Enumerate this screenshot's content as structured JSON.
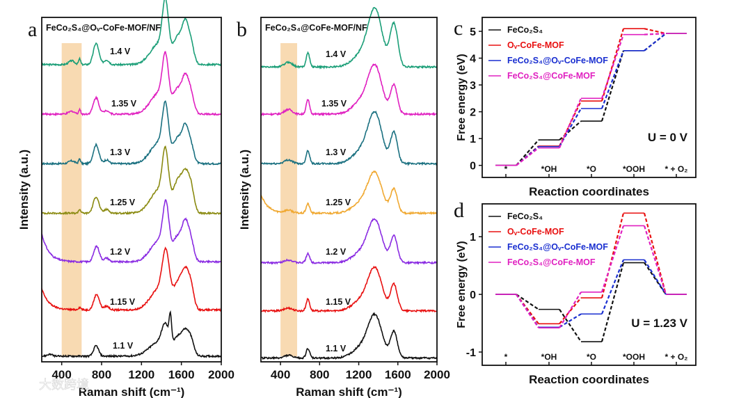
{
  "watermark": "大数跨境",
  "chart_data": [
    {
      "panel": "a",
      "type": "line",
      "title": "FeCo₂S₄@Oᵥ-CoFe-MOF/NF",
      "xlabel": "Raman shift (cm⁻¹)",
      "ylabel": "Intensity (a.u.)",
      "xlim": [
        200,
        2000
      ],
      "xticks": [
        "400",
        "800",
        "1200",
        "1600",
        "2000"
      ],
      "xtick_values": [
        400,
        800,
        1200,
        1600,
        2000
      ],
      "highlight_band": [
        400,
        600
      ],
      "ylim": [
        0,
        7.3
      ],
      "series": [
        {
          "name": "1.4 V",
          "color": "#1a9e77",
          "offset": 6.3,
          "tail": 0,
          "peaks": [
            [
              500,
              0.08,
              30
            ],
            [
              580,
              0.12,
              10
            ],
            [
              745,
              0.45,
              28
            ],
            [
              850,
              0.1,
              25
            ],
            [
              1440,
              1.05,
              30
            ],
            [
              1380,
              0.45,
              90
            ],
            [
              1560,
              0.5,
              40
            ],
            [
              1640,
              0.85,
              35
            ],
            [
              1700,
              0.35,
              30
            ]
          ]
        },
        {
          "name": "1.35 V",
          "color": "#e020c0",
          "offset": 5.25,
          "tail": 0,
          "peaks": [
            [
              500,
              0.06,
              30
            ],
            [
              580,
              0.1,
              10
            ],
            [
              745,
              0.35,
              28
            ],
            [
              850,
              0.08,
              25
            ],
            [
              1440,
              0.95,
              30
            ],
            [
              1380,
              0.45,
              90
            ],
            [
              1560,
              0.45,
              40
            ],
            [
              1640,
              0.75,
              35
            ],
            [
              1700,
              0.35,
              30
            ]
          ]
        },
        {
          "name": "1.3 V",
          "color": "#1a7080",
          "offset": 4.2,
          "tail": 0,
          "peaks": [
            [
              500,
              0.06,
              30
            ],
            [
              580,
              0.1,
              10
            ],
            [
              745,
              0.4,
              28
            ],
            [
              850,
              0.08,
              25
            ],
            [
              1440,
              0.95,
              30
            ],
            [
              1380,
              0.45,
              90
            ],
            [
              1560,
              0.45,
              40
            ],
            [
              1640,
              0.75,
              35
            ],
            [
              1700,
              0.3,
              30
            ]
          ]
        },
        {
          "name": "1.25 V",
          "color": "#8a8a10",
          "offset": 3.15,
          "tail": 0,
          "peaks": [
            [
              580,
              0.08,
              12
            ],
            [
              745,
              0.35,
              28
            ],
            [
              850,
              0.08,
              25
            ],
            [
              1440,
              1.0,
              30
            ],
            [
              1380,
              0.5,
              90
            ],
            [
              1560,
              0.55,
              40
            ],
            [
              1640,
              0.8,
              40
            ],
            [
              1700,
              0.4,
              30
            ]
          ]
        },
        {
          "name": "1.2 V",
          "color": "#8a2be2",
          "offset": 2.12,
          "tail": 0.6,
          "peaks": [
            [
              750,
              0.33,
              28
            ],
            [
              850,
              0.08,
              25
            ],
            [
              1445,
              0.95,
              30
            ],
            [
              1380,
              0.45,
              90
            ],
            [
              1560,
              0.45,
              40
            ],
            [
              1640,
              0.8,
              35
            ],
            [
              1700,
              0.35,
              30
            ]
          ]
        },
        {
          "name": "1.15 V",
          "color": "#e81010",
          "offset": 1.1,
          "tail": 0.45,
          "peaks": [
            [
              580,
              0.05,
              15
            ],
            [
              750,
              0.33,
              28
            ],
            [
              850,
              0.08,
              25
            ],
            [
              1445,
              0.95,
              35
            ],
            [
              1380,
              0.45,
              90
            ],
            [
              1560,
              0.45,
              40
            ],
            [
              1640,
              0.8,
              40
            ],
            [
              1700,
              0.35,
              30
            ]
          ]
        },
        {
          "name": "1.1 V",
          "color": "#111111",
          "offset": 0.12,
          "tail": 0,
          "peaks": [
            [
              280,
              0.04,
              25
            ],
            [
              745,
              0.22,
              25
            ],
            [
              1440,
              0.45,
              35
            ],
            [
              1490,
              0.55,
              12
            ],
            [
              1380,
              0.3,
              100
            ],
            [
              1560,
              0.3,
              40
            ],
            [
              1640,
              0.5,
              40
            ],
            [
              1700,
              0.25,
              30
            ]
          ]
        }
      ]
    },
    {
      "panel": "b",
      "type": "line",
      "title": "FeCo₂S₄@CoFe-MOF/NF",
      "xlabel": "Raman shift (cm⁻¹)",
      "ylabel": "Intensity (a.u.)",
      "xlim": [
        200,
        2000
      ],
      "xticks": [
        "400",
        "800",
        "1200",
        "1600",
        "2000"
      ],
      "xtick_values": [
        400,
        800,
        1200,
        1600,
        2000
      ],
      "highlight_band": [
        400,
        570
      ],
      "ylim": [
        0,
        7.3
      ],
      "series": [
        {
          "name": "1.4 V",
          "color": "#1a9e77",
          "offset": 6.25,
          "tail": 0,
          "peaks": [
            [
              480,
              0.1,
              40
            ],
            [
              680,
              0.3,
              18
            ],
            [
              1370,
              1.1,
              70
            ],
            [
              1560,
              0.9,
              40
            ],
            [
              1250,
              0.3,
              100
            ]
          ]
        },
        {
          "name": "1.35 V",
          "color": "#e020c0",
          "offset": 5.25,
          "tail": 0,
          "peaks": [
            [
              480,
              0.1,
              40
            ],
            [
              680,
              0.3,
              18
            ],
            [
              1370,
              0.9,
              70
            ],
            [
              1560,
              0.6,
              35
            ],
            [
              1250,
              0.3,
              100
            ]
          ]
        },
        {
          "name": "1.3 V",
          "color": "#1a7080",
          "offset": 4.2,
          "tail": 0,
          "peaks": [
            [
              480,
              0.08,
              40
            ],
            [
              680,
              0.28,
              18
            ],
            [
              1370,
              0.95,
              70
            ],
            [
              1560,
              0.65,
              35
            ],
            [
              1250,
              0.3,
              100
            ]
          ]
        },
        {
          "name": "1.25 V",
          "color": "#f0a830",
          "offset": 3.15,
          "tail": 0.4,
          "peaks": [
            [
              480,
              0.06,
              40
            ],
            [
              680,
              0.2,
              18
            ],
            [
              1370,
              0.75,
              70
            ],
            [
              1560,
              0.5,
              35
            ],
            [
              1250,
              0.25,
              100
            ]
          ]
        },
        {
          "name": "1.2 V",
          "color": "#8a2be2",
          "offset": 2.1,
          "tail": 0,
          "peaks": [
            [
              480,
              0.06,
              40
            ],
            [
              680,
              0.2,
              18
            ],
            [
              1370,
              0.8,
              70
            ],
            [
              1560,
              0.55,
              35
            ],
            [
              1250,
              0.25,
              100
            ]
          ]
        },
        {
          "name": "1.15 V",
          "color": "#e81010",
          "offset": 1.08,
          "tail": 0,
          "peaks": [
            [
              480,
              0.06,
              40
            ],
            [
              680,
              0.25,
              18
            ],
            [
              1370,
              0.8,
              70
            ],
            [
              1560,
              0.55,
              35
            ],
            [
              1250,
              0.25,
              100
            ]
          ]
        },
        {
          "name": "1.1 V",
          "color": "#111111",
          "offset": 0.08,
          "tail": 0,
          "peaks": [
            [
              480,
              0.06,
              40
            ],
            [
              680,
              0.2,
              18
            ],
            [
              1370,
              0.8,
              70
            ],
            [
              1560,
              0.55,
              35
            ],
            [
              1250,
              0.25,
              100
            ]
          ]
        }
      ]
    },
    {
      "panel": "c",
      "type": "line",
      "xlabel": "Reaction coordinates",
      "ylabel": "Free energy (eV)",
      "annotation": "U = 0 V",
      "categories": [
        "*",
        "*OH",
        "*O",
        "*OOH",
        "* + O₂"
      ],
      "ylim": [
        -0.45,
        5.52
      ],
      "yticks": [
        "0",
        "1",
        "2",
        "3",
        "4",
        "5"
      ],
      "ytick_values": [
        0,
        1,
        2,
        3,
        4,
        5
      ],
      "legend": "top-left",
      "series": [
        {
          "name": "FeCo₂S₄",
          "color": "#111111",
          "values": [
            0,
            0.95,
            1.65,
            4.28,
            4.92
          ]
        },
        {
          "name": "Oᵥ-CoFe-MOF",
          "color": "#e81010",
          "values": [
            0,
            0.72,
            2.4,
            5.1,
            4.92
          ]
        },
        {
          "name": "FeCo₂S₄@Oᵥ-CoFe-MOF",
          "color": "#1a2fd0",
          "values": [
            0,
            0.7,
            2.12,
            4.28,
            4.92
          ]
        },
        {
          "name": "FeCo₂S₄@CoFe-MOF",
          "color": "#e020c0",
          "values": [
            0,
            0.65,
            2.5,
            4.88,
            4.92
          ]
        }
      ]
    },
    {
      "panel": "d",
      "type": "line",
      "xlabel": "Reaction coordinates",
      "ylabel": "Free energy (eV)",
      "annotation": "U = 1.23 V",
      "categories": [
        "*",
        "*OH",
        "*O",
        "*OOH",
        "* + O₂"
      ],
      "ylim": [
        -1.23,
        1.57
      ],
      "yticks": [
        "-1",
        "0",
        "1"
      ],
      "ytick_values": [
        -1,
        0,
        1
      ],
      "legend": "top-left",
      "series": [
        {
          "name": "FeCo₂S₄",
          "color": "#111111",
          "values": [
            0,
            -0.26,
            -0.82,
            0.55,
            0
          ]
        },
        {
          "name": "Oᵥ-CoFe-MOF",
          "color": "#e81010",
          "values": [
            0,
            -0.51,
            -0.06,
            1.41,
            0
          ]
        },
        {
          "name": "FeCo₂S₄@Oᵥ-CoFe-MOF",
          "color": "#1a2fd0",
          "values": [
            0,
            -0.57,
            -0.34,
            0.6,
            0
          ]
        },
        {
          "name": "FeCo₂S₄@CoFe-MOF",
          "color": "#e020c0",
          "values": [
            0,
            -0.58,
            0.04,
            1.19,
            0
          ]
        }
      ]
    }
  ],
  "panel_letters": [
    "a",
    "b",
    "c",
    "d"
  ]
}
